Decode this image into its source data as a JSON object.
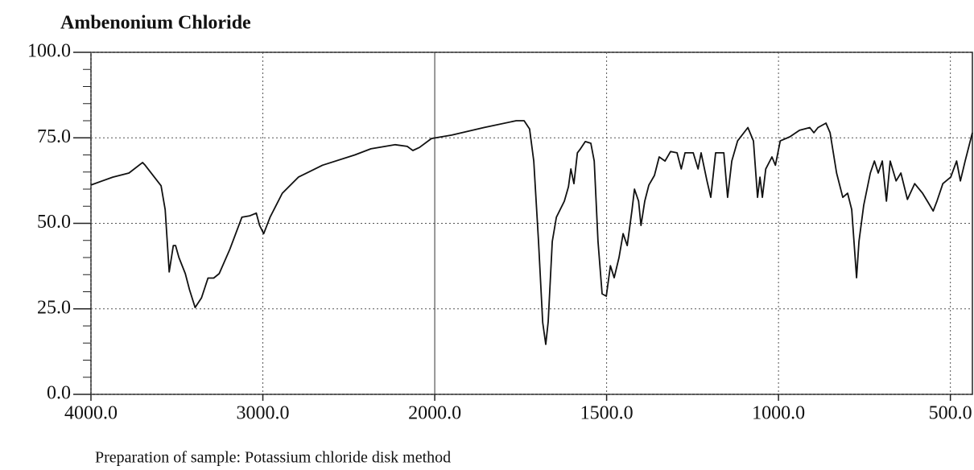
{
  "chart_data": {
    "type": "line",
    "title": "Ambenonium Chloride",
    "note": "Preparation of sample: Potassium chloride disk method",
    "color": "#111111",
    "x_scale_change": {
      "at": 2000,
      "factor": 2
    },
    "xlim": [
      4000,
      436
    ],
    "xticks": [
      {
        "value": 4000,
        "label": "4000.0"
      },
      {
        "value": 3000,
        "label": "3000.0"
      },
      {
        "value": 2000,
        "label": "2000.0"
      },
      {
        "value": 1500,
        "label": "1500.0"
      },
      {
        "value": 1000,
        "label": "1000.0"
      },
      {
        "value": 500,
        "label": "500.0"
      }
    ],
    "ylim": [
      0,
      100
    ],
    "yticks": [
      {
        "value": 0,
        "label": "0.0"
      },
      {
        "value": 25,
        "label": "25.0"
      },
      {
        "value": 50,
        "label": "50.0"
      },
      {
        "value": 75,
        "label": "75.0"
      },
      {
        "value": 100,
        "label": "100.0"
      }
    ],
    "yminor": [
      5,
      10,
      15,
      20,
      30,
      35,
      40,
      45,
      55,
      60,
      65,
      70,
      80,
      85,
      90,
      95
    ],
    "grid": true,
    "x": [
      4000,
      3873,
      3779,
      3700,
      3685,
      3592,
      3568,
      3545,
      3521,
      3508,
      3488,
      3451,
      3427,
      3394,
      3357,
      3319,
      3286,
      3254,
      3192,
      3122,
      3075,
      3038,
      3019,
      2995,
      2958,
      2887,
      2793,
      2653,
      2465,
      2371,
      2230,
      2160,
      2127,
      2089,
      2019,
      1951,
      1857,
      1763,
      1740,
      1724,
      1712,
      1698,
      1686,
      1677,
      1670,
      1658,
      1646,
      1623,
      1611,
      1604,
      1595,
      1585,
      1576,
      1562,
      1546,
      1536,
      1525,
      1513,
      1501,
      1489,
      1478,
      1464,
      1452,
      1440,
      1426,
      1419,
      1407,
      1400,
      1389,
      1377,
      1361,
      1347,
      1330,
      1314,
      1295,
      1283,
      1272,
      1248,
      1234,
      1225,
      1208,
      1197,
      1183,
      1159,
      1148,
      1136,
      1119,
      1089,
      1073,
      1061,
      1054,
      1047,
      1037,
      1019,
      1009,
      995,
      967,
      939,
      909,
      897,
      885,
      862,
      850,
      831,
      813,
      799,
      787,
      773,
      766,
      752,
      733,
      721,
      710,
      698,
      686,
      675,
      658,
      644,
      625,
      604,
      581,
      564,
      550,
      539,
      522,
      499,
      482,
      471,
      457,
      436
    ],
    "values": [
      61.2,
      63.5,
      64.7,
      67.8,
      67,
      61,
      54,
      35.8,
      43.5,
      43.5,
      40,
      35.3,
      30.6,
      25.4,
      28.2,
      34,
      34,
      35.3,
      42.4,
      51.8,
      52.2,
      53,
      49.4,
      47,
      51.8,
      58.8,
      63.5,
      67,
      70,
      71.8,
      73,
      72.5,
      71.3,
      72.2,
      74.8,
      75.8,
      78,
      80,
      80,
      77.6,
      68.2,
      44.7,
      21,
      14.6,
      21.2,
      44.7,
      51.8,
      56.5,
      60.7,
      65.9,
      61.6,
      70.6,
      71.8,
      73.9,
      73.4,
      68.2,
      44.7,
      29.4,
      28.7,
      37.6,
      34.1,
      40,
      47,
      43.5,
      54,
      60,
      56.5,
      49.4,
      56.5,
      61.2,
      64,
      69.4,
      68.2,
      71,
      70.6,
      65.9,
      70.6,
      70.6,
      65.9,
      70.6,
      62.4,
      57.6,
      70.6,
      70.6,
      57.6,
      68.2,
      74.1,
      78,
      74.1,
      57.6,
      63.5,
      57.6,
      65.9,
      69.4,
      67,
      74.1,
      75.3,
      77.2,
      78,
      76.5,
      78,
      79.3,
      76.5,
      64.7,
      57.6,
      58.8,
      54,
      34.1,
      44.7,
      55.3,
      64.7,
      68.2,
      64.7,
      68.2,
      56.5,
      68.2,
      62.4,
      64.7,
      57,
      61.6,
      58.8,
      56,
      53.6,
      56.5,
      61.6,
      63.5,
      68.2,
      62.4,
      68.2,
      76.5
    ]
  }
}
